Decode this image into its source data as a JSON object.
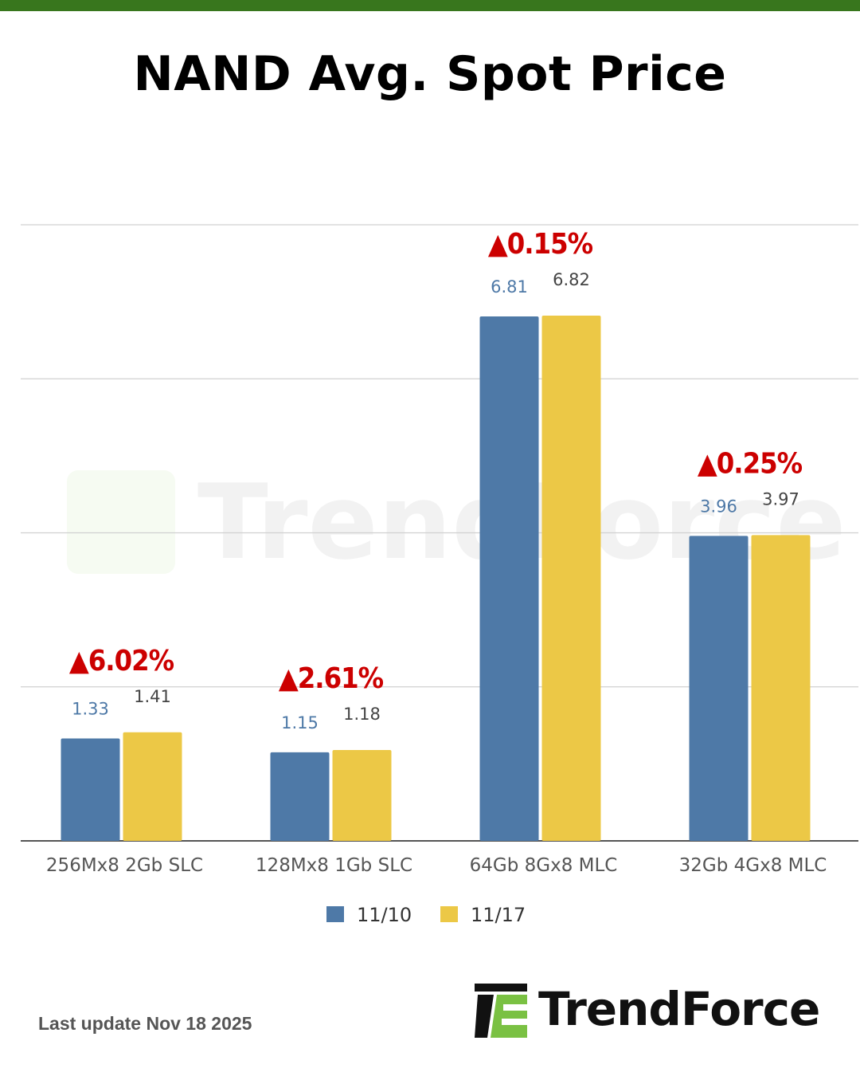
{
  "header": {
    "title": "NAND Avg. Spot Price"
  },
  "chart_data": {
    "type": "bar",
    "title": "NAND Avg. Spot Price",
    "categories": [
      "256Mx8 2Gb SLC",
      "128Mx8 1Gb SLC",
      "64Gb 8Gx8 MLC",
      "32Gb 4Gx8 MLC"
    ],
    "series": [
      {
        "name": "11/10",
        "values": [
          1.33,
          1.15,
          6.81,
          3.96
        ],
        "color": "#4e79a7",
        "label_color": "#4e79a7"
      },
      {
        "name": "11/17",
        "values": [
          1.41,
          1.18,
          6.82,
          3.97
        ],
        "color": "#ecc846",
        "label_color": "#444444"
      }
    ],
    "changes": [
      "▲6.02%",
      "▲2.61%",
      "▲0.15%",
      "▲0.25%"
    ],
    "change_color": "#cc0000",
    "ylim": [
      0,
      8
    ],
    "gridlines": [
      0,
      2,
      4,
      6,
      8
    ],
    "grid": true,
    "legend": "bottom",
    "xlabel": "",
    "ylabel": ""
  },
  "watermark": "TrendForce",
  "footer": {
    "last_update": "Last update Nov 18  2025",
    "brand": "TrendForce"
  }
}
